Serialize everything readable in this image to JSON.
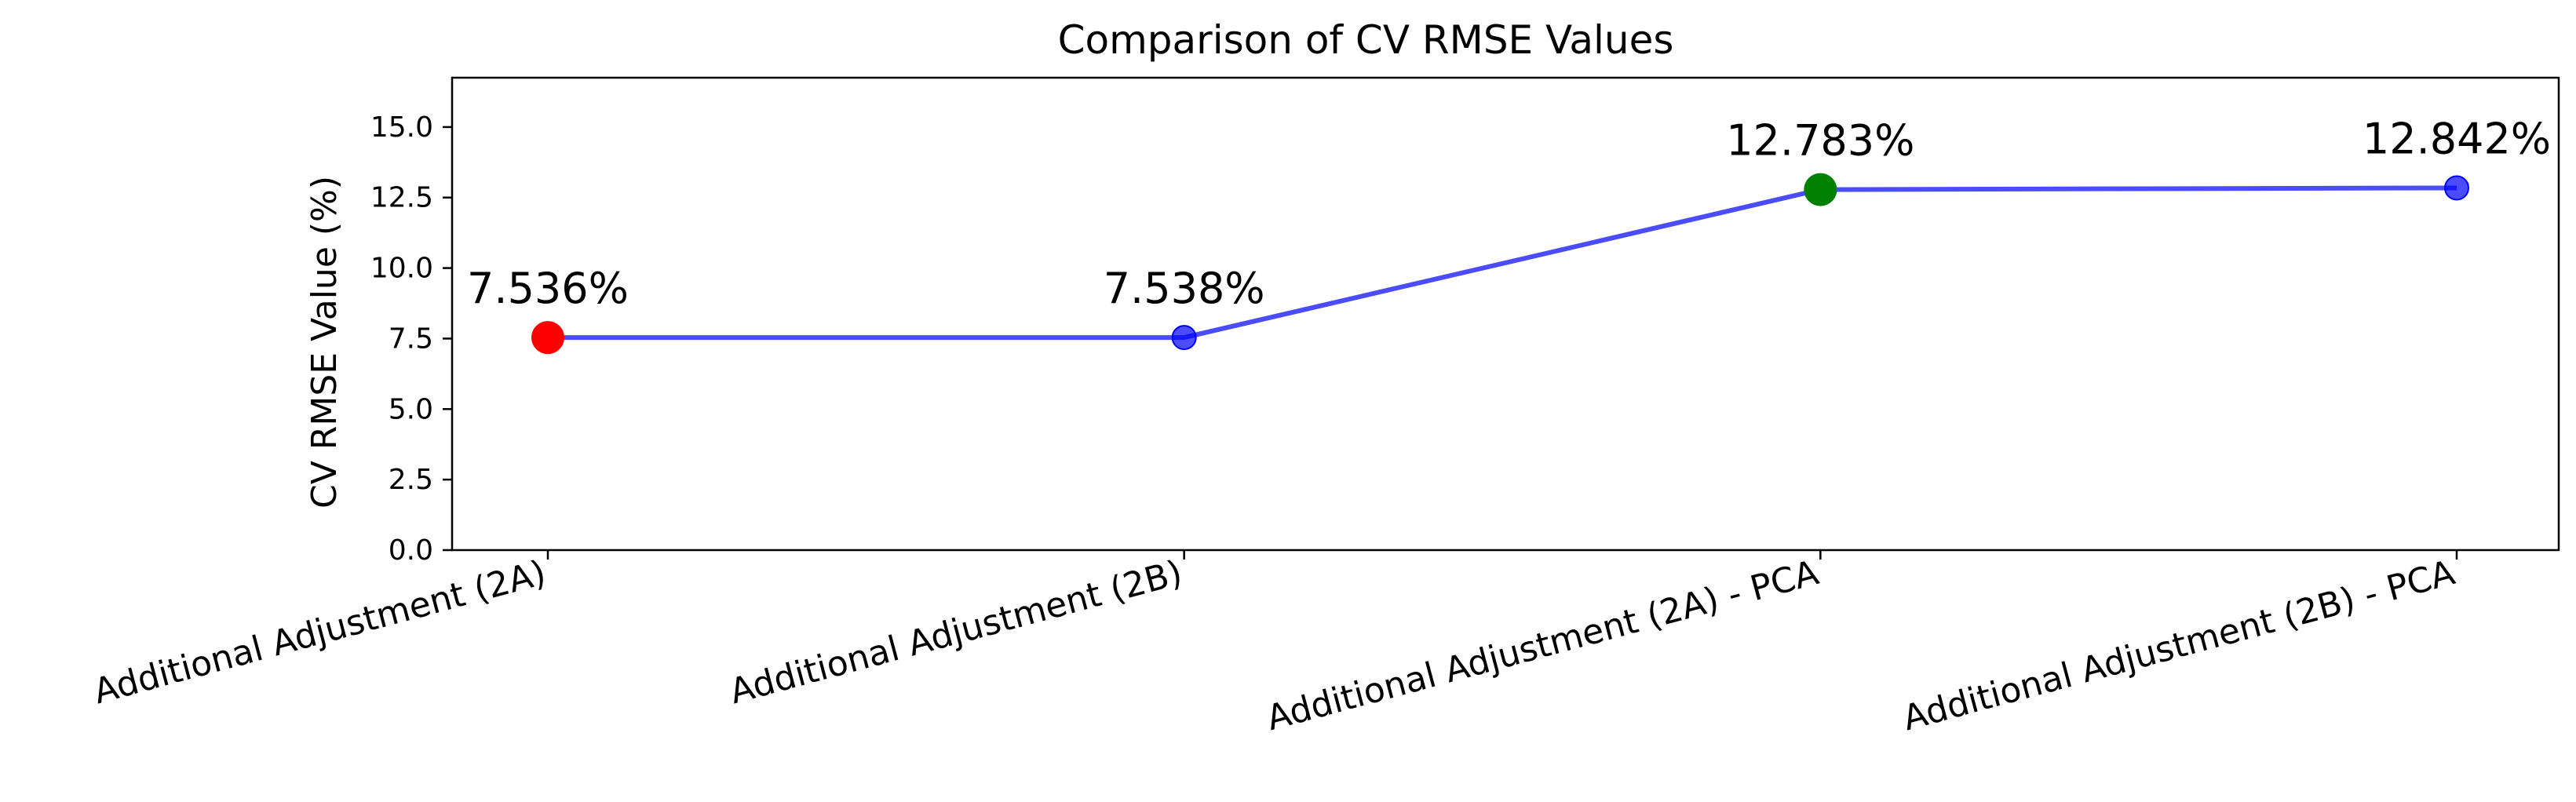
{
  "chart_data": {
    "type": "line",
    "title": "Comparison of CV RMSE Values",
    "xlabel": "",
    "ylabel": "CV RMSE Value (%)",
    "categories": [
      "Additional Adjustment (2A)",
      "Additional Adjustment (2B)",
      "Additional Adjustment (2A) - PCA",
      "Additional Adjustment (2B) - PCA"
    ],
    "series": [
      {
        "values": [
          7.536,
          7.538,
          12.783,
          12.842
        ],
        "color": "#0000ff",
        "point_colors": [
          "#ff0000",
          "#0000ff",
          "#008000",
          "#0000ff"
        ]
      }
    ],
    "data_labels": [
      "7.536%",
      "7.538%",
      "12.783%",
      "12.842%"
    ],
    "ylim": [
      0,
      16.75
    ],
    "yticks": [
      0.0,
      2.5,
      5.0,
      7.5,
      10.0,
      12.5,
      15.0
    ],
    "ytick_labels": [
      "0.0",
      "2.5",
      "5.0",
      "7.5",
      "10.0",
      "12.5",
      "15.0"
    ],
    "grid": false,
    "legend": "none"
  }
}
